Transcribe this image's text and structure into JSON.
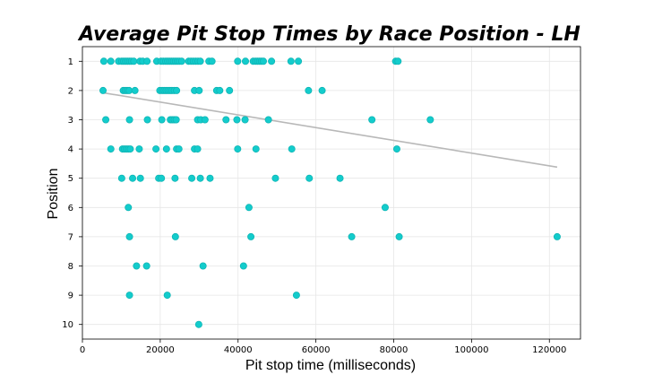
{
  "chart_data": {
    "type": "scatter",
    "title": "Average Pit Stop Times by Race Position - LH",
    "xlabel": "Pit stop time (milliseconds)",
    "ylabel": "Position",
    "xlim": [
      0,
      128000
    ],
    "ylim": [
      10.5,
      0.5
    ],
    "y_inverted": true,
    "grid": true,
    "xticks": [
      0,
      20000,
      40000,
      60000,
      80000,
      100000,
      120000
    ],
    "yticks": [
      1,
      2,
      3,
      4,
      5,
      6,
      7,
      8,
      9,
      10
    ],
    "point_color": "#13cccc",
    "trendline_color": "#b8b8b8",
    "trendline": {
      "x": [
        5000,
        122000
      ],
      "y": [
        2.07,
        4.62
      ]
    },
    "points": [
      {
        "x": 5500,
        "y": 1
      },
      {
        "x": 7300,
        "y": 1
      },
      {
        "x": 9300,
        "y": 1
      },
      {
        "x": 10100,
        "y": 1
      },
      {
        "x": 10600,
        "y": 1
      },
      {
        "x": 11100,
        "y": 1
      },
      {
        "x": 11600,
        "y": 1
      },
      {
        "x": 12100,
        "y": 1
      },
      {
        "x": 12600,
        "y": 1
      },
      {
        "x": 13200,
        "y": 1
      },
      {
        "x": 14800,
        "y": 1
      },
      {
        "x": 15500,
        "y": 1
      },
      {
        "x": 16600,
        "y": 1
      },
      {
        "x": 19100,
        "y": 1
      },
      {
        "x": 20200,
        "y": 1
      },
      {
        "x": 20800,
        "y": 1
      },
      {
        "x": 21400,
        "y": 1
      },
      {
        "x": 21900,
        "y": 1
      },
      {
        "x": 22400,
        "y": 1
      },
      {
        "x": 22900,
        "y": 1
      },
      {
        "x": 23400,
        "y": 1
      },
      {
        "x": 23900,
        "y": 1
      },
      {
        "x": 24400,
        "y": 1
      },
      {
        "x": 24900,
        "y": 1
      },
      {
        "x": 25500,
        "y": 1
      },
      {
        "x": 27300,
        "y": 1
      },
      {
        "x": 27900,
        "y": 1
      },
      {
        "x": 28500,
        "y": 1
      },
      {
        "x": 29100,
        "y": 1
      },
      {
        "x": 29700,
        "y": 1
      },
      {
        "x": 30300,
        "y": 1
      },
      {
        "x": 32500,
        "y": 1
      },
      {
        "x": 33300,
        "y": 1
      },
      {
        "x": 39900,
        "y": 1
      },
      {
        "x": 41900,
        "y": 1
      },
      {
        "x": 43900,
        "y": 1
      },
      {
        "x": 44500,
        "y": 1
      },
      {
        "x": 45000,
        "y": 1
      },
      {
        "x": 45500,
        "y": 1
      },
      {
        "x": 46000,
        "y": 1
      },
      {
        "x": 46500,
        "y": 1
      },
      {
        "x": 48600,
        "y": 1
      },
      {
        "x": 53600,
        "y": 1
      },
      {
        "x": 55500,
        "y": 1
      },
      {
        "x": 80500,
        "y": 1
      },
      {
        "x": 81100,
        "y": 1
      },
      {
        "x": 5300,
        "y": 2
      },
      {
        "x": 10500,
        "y": 2
      },
      {
        "x": 11000,
        "y": 2
      },
      {
        "x": 11500,
        "y": 2
      },
      {
        "x": 12000,
        "y": 2
      },
      {
        "x": 13500,
        "y": 2
      },
      {
        "x": 19900,
        "y": 2
      },
      {
        "x": 20500,
        "y": 2
      },
      {
        "x": 21000,
        "y": 2
      },
      {
        "x": 21500,
        "y": 2
      },
      {
        "x": 22000,
        "y": 2
      },
      {
        "x": 22500,
        "y": 2
      },
      {
        "x": 23000,
        "y": 2
      },
      {
        "x": 23600,
        "y": 2
      },
      {
        "x": 24200,
        "y": 2
      },
      {
        "x": 28800,
        "y": 2
      },
      {
        "x": 30000,
        "y": 2
      },
      {
        "x": 34500,
        "y": 2
      },
      {
        "x": 35300,
        "y": 2
      },
      {
        "x": 37800,
        "y": 2
      },
      {
        "x": 58100,
        "y": 2
      },
      {
        "x": 61600,
        "y": 2
      },
      {
        "x": 6000,
        "y": 3
      },
      {
        "x": 12100,
        "y": 3
      },
      {
        "x": 16700,
        "y": 3
      },
      {
        "x": 20400,
        "y": 3
      },
      {
        "x": 22600,
        "y": 3
      },
      {
        "x": 23100,
        "y": 3
      },
      {
        "x": 23600,
        "y": 3
      },
      {
        "x": 24100,
        "y": 3
      },
      {
        "x": 29600,
        "y": 3
      },
      {
        "x": 30400,
        "y": 3
      },
      {
        "x": 31500,
        "y": 3
      },
      {
        "x": 36900,
        "y": 3
      },
      {
        "x": 39700,
        "y": 3
      },
      {
        "x": 41800,
        "y": 3
      },
      {
        "x": 47800,
        "y": 3
      },
      {
        "x": 74400,
        "y": 3
      },
      {
        "x": 89400,
        "y": 3
      },
      {
        "x": 7300,
        "y": 4
      },
      {
        "x": 10300,
        "y": 4
      },
      {
        "x": 10800,
        "y": 4
      },
      {
        "x": 11300,
        "y": 4
      },
      {
        "x": 11800,
        "y": 4
      },
      {
        "x": 12300,
        "y": 4
      },
      {
        "x": 14600,
        "y": 4
      },
      {
        "x": 18900,
        "y": 4
      },
      {
        "x": 21600,
        "y": 4
      },
      {
        "x": 24200,
        "y": 4
      },
      {
        "x": 24800,
        "y": 4
      },
      {
        "x": 28800,
        "y": 4
      },
      {
        "x": 29600,
        "y": 4
      },
      {
        "x": 39900,
        "y": 4
      },
      {
        "x": 44600,
        "y": 4
      },
      {
        "x": 53800,
        "y": 4
      },
      {
        "x": 80800,
        "y": 4
      },
      {
        "x": 10100,
        "y": 5
      },
      {
        "x": 12900,
        "y": 5
      },
      {
        "x": 14900,
        "y": 5
      },
      {
        "x": 19600,
        "y": 5
      },
      {
        "x": 20300,
        "y": 5
      },
      {
        "x": 23800,
        "y": 5
      },
      {
        "x": 28100,
        "y": 5
      },
      {
        "x": 30300,
        "y": 5
      },
      {
        "x": 32800,
        "y": 5
      },
      {
        "x": 49600,
        "y": 5
      },
      {
        "x": 58300,
        "y": 5
      },
      {
        "x": 66200,
        "y": 5
      },
      {
        "x": 11800,
        "y": 6
      },
      {
        "x": 42800,
        "y": 6
      },
      {
        "x": 77800,
        "y": 6
      },
      {
        "x": 12100,
        "y": 7
      },
      {
        "x": 23900,
        "y": 7
      },
      {
        "x": 43300,
        "y": 7
      },
      {
        "x": 69200,
        "y": 7
      },
      {
        "x": 81400,
        "y": 7
      },
      {
        "x": 122000,
        "y": 7
      },
      {
        "x": 13900,
        "y": 8
      },
      {
        "x": 16500,
        "y": 8
      },
      {
        "x": 31000,
        "y": 8
      },
      {
        "x": 41400,
        "y": 8
      },
      {
        "x": 12100,
        "y": 9
      },
      {
        "x": 21800,
        "y": 9
      },
      {
        "x": 55000,
        "y": 9
      },
      {
        "x": 29900,
        "y": 10
      }
    ]
  }
}
